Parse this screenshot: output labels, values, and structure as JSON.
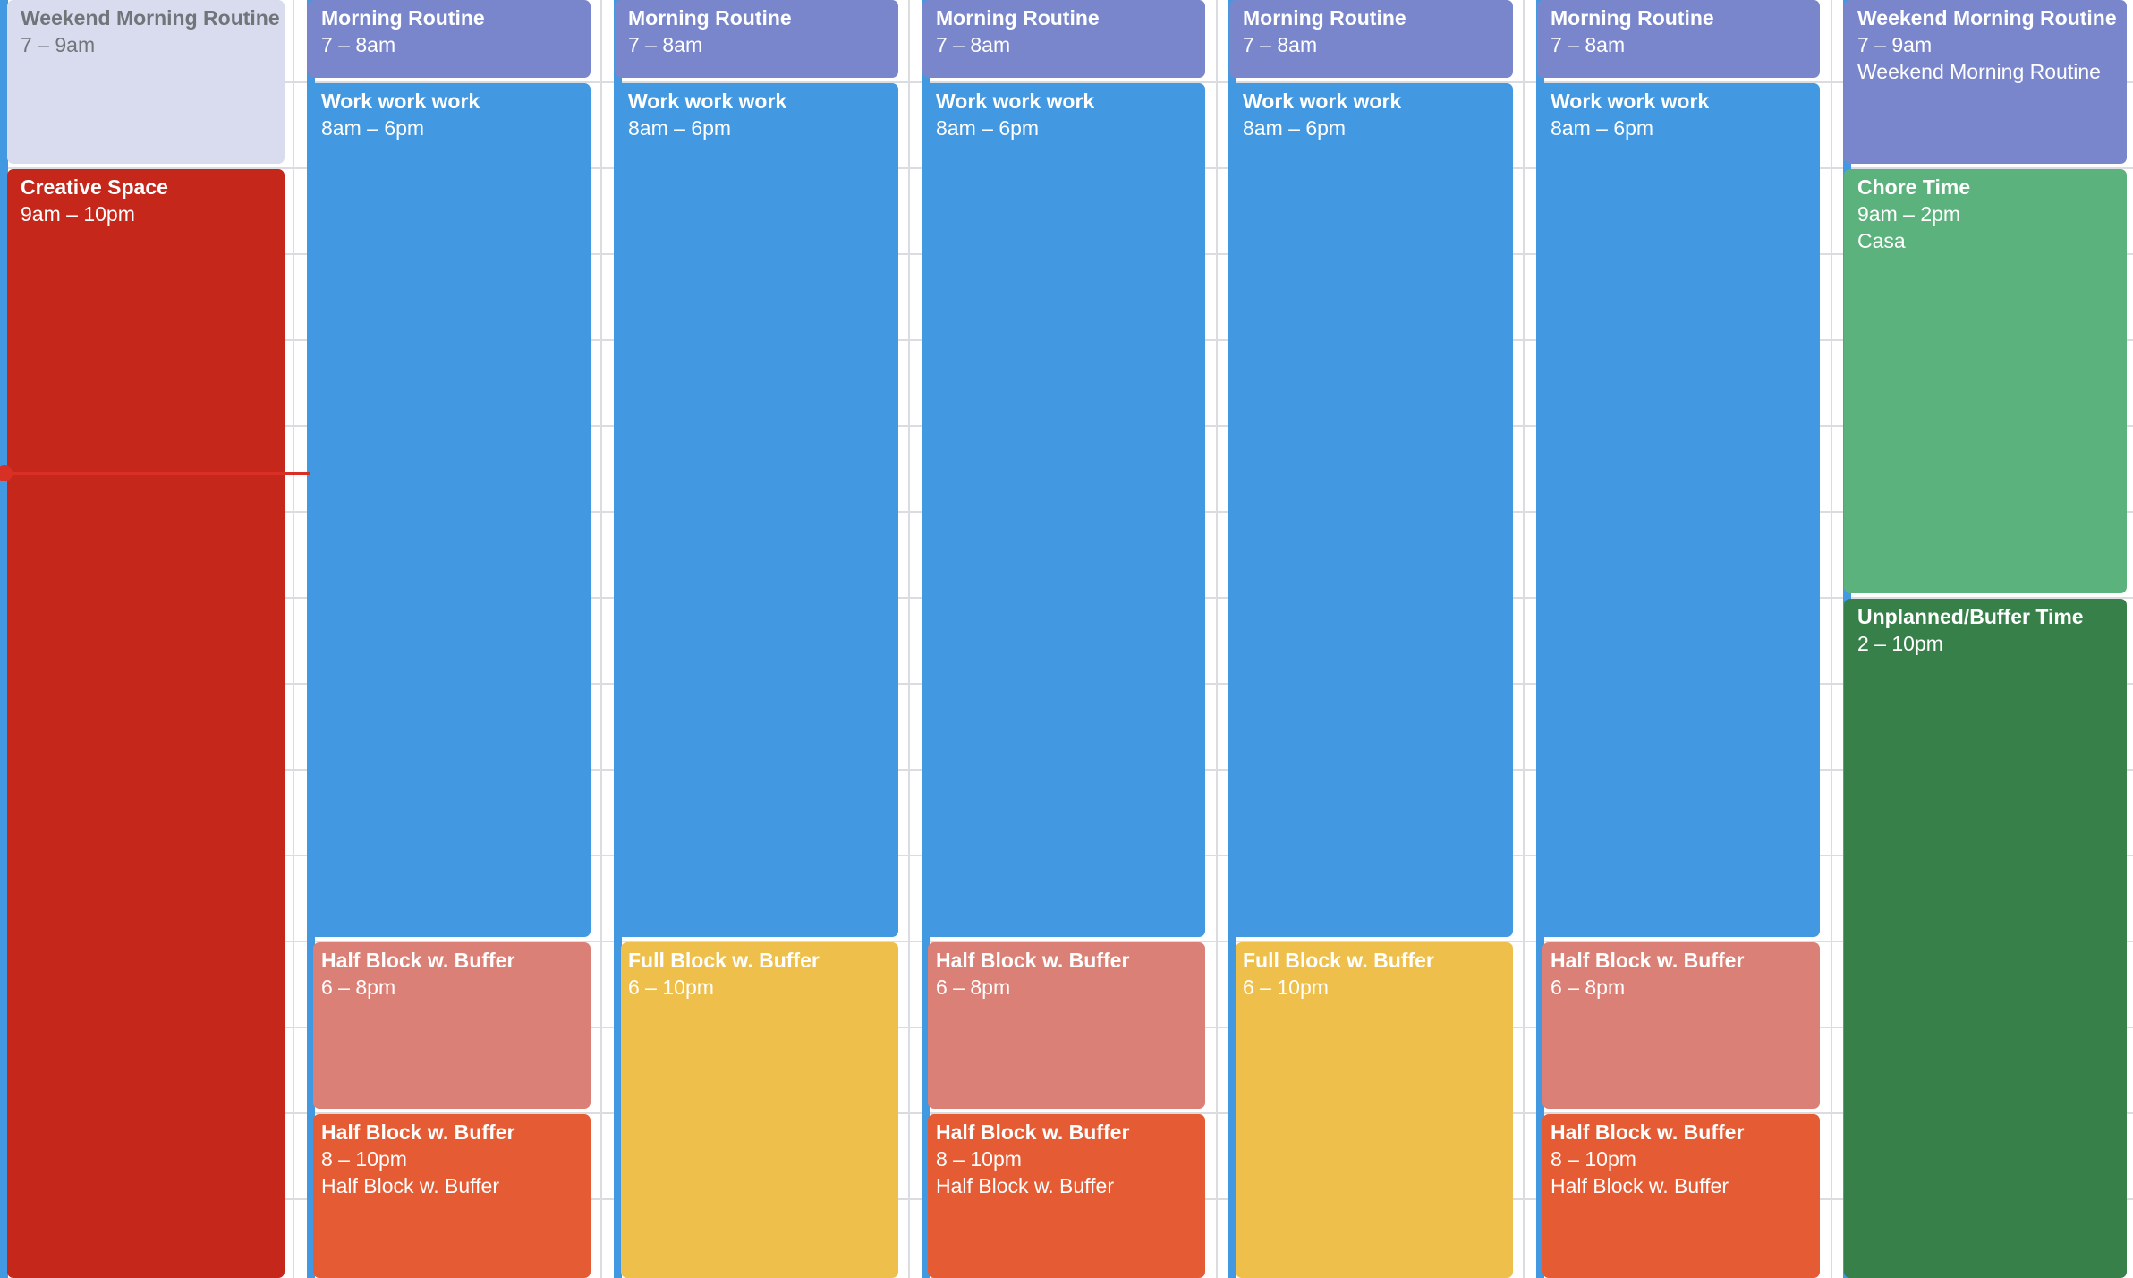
{
  "calendar": {
    "colors": {
      "past_event": "#d9dcee",
      "morning_routine": "#7986cb",
      "work": "#4299e1",
      "creative": "#c5271b",
      "half_block_1": "#db8076",
      "half_block_2": "#e55c34",
      "full_block": "#eebf4b",
      "chore": "#5cb27c",
      "unplanned": "#388049",
      "now_line": "#d93025",
      "day_strip": "#4299e1"
    },
    "days": [
      {
        "events": [
          {
            "title": "Weekend Morning Routine",
            "time": "7 – 9am"
          },
          {
            "title": "Creative Space",
            "time": "9am – 10pm"
          }
        ]
      },
      {
        "events": [
          {
            "title": "Morning Routine",
            "time": "7 – 8am"
          },
          {
            "title": "Work work work",
            "time": "8am – 6pm"
          },
          {
            "title": "Half Block w. Buffer",
            "time": "6 – 8pm"
          },
          {
            "title": "Half Block w. Buffer",
            "time": "8 – 10pm",
            "subtitle": "Half Block w. Buffer"
          }
        ]
      },
      {
        "events": [
          {
            "title": "Morning Routine",
            "time": "7 – 8am"
          },
          {
            "title": "Work work work",
            "time": "8am – 6pm"
          },
          {
            "title": "Full Block w. Buffer",
            "time": "6 – 10pm"
          }
        ]
      },
      {
        "events": [
          {
            "title": "Morning Routine",
            "time": "7 – 8am"
          },
          {
            "title": "Work work work",
            "time": "8am – 6pm"
          },
          {
            "title": "Half Block w. Buffer",
            "time": "6 – 8pm"
          },
          {
            "title": "Half Block w. Buffer",
            "time": "8 – 10pm",
            "subtitle": "Half Block w. Buffer"
          }
        ]
      },
      {
        "events": [
          {
            "title": "Morning Routine",
            "time": "7 – 8am"
          },
          {
            "title": "Work work work",
            "time": "8am – 6pm"
          },
          {
            "title": "Full Block w. Buffer",
            "time": "6 – 10pm"
          }
        ]
      },
      {
        "events": [
          {
            "title": "Morning Routine",
            "time": "7 – 8am"
          },
          {
            "title": "Work work work",
            "time": "8am – 6pm"
          },
          {
            "title": "Half Block w. Buffer",
            "time": "6 – 8pm"
          },
          {
            "title": "Half Block w. Buffer",
            "time": "8 – 10pm",
            "subtitle": "Half Block w. Buffer"
          }
        ]
      },
      {
        "events": [
          {
            "title": "Weekend Morning Routine",
            "time": "7 – 9am",
            "subtitle": "Weekend Morning Routine"
          },
          {
            "title": "Chore Time",
            "time": "9am – 2pm",
            "subtitle": "Casa"
          },
          {
            "title": "Unplanned/Buffer Time",
            "time": "2 – 10pm"
          }
        ]
      }
    ]
  }
}
